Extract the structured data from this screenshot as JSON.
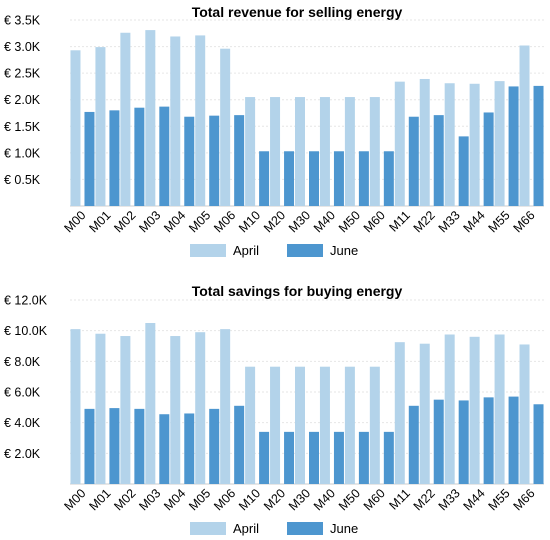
{
  "chart_data": [
    {
      "type": "bar",
      "title": "Total revenue for selling energy",
      "categories": [
        "M00",
        "M01",
        "M02",
        "M03",
        "M04",
        "M05",
        "M06",
        "M10",
        "M20",
        "M30",
        "M40",
        "M50",
        "M60",
        "M11",
        "M22",
        "M33",
        "M44",
        "M55",
        "M66"
      ],
      "series": [
        {
          "name": "April",
          "color": "#b3d3ea",
          "values": [
            2.93,
            2.99,
            3.26,
            3.31,
            3.19,
            3.21,
            2.96,
            2.05,
            2.05,
            2.05,
            2.05,
            2.05,
            2.05,
            2.34,
            2.39,
            2.31,
            2.3,
            2.35,
            3.02
          ]
        },
        {
          "name": "June",
          "color": "#4d96cf",
          "values": [
            1.77,
            1.8,
            1.85,
            1.87,
            1.68,
            1.7,
            1.71,
            1.03,
            1.03,
            1.03,
            1.03,
            1.03,
            1.03,
            1.68,
            1.71,
            1.31,
            1.76,
            2.25,
            2.26
          ]
        }
      ],
      "ylim": [
        0,
        3.5
      ],
      "yticks": [
        0.5,
        1.0,
        1.5,
        2.0,
        2.5,
        3.0,
        3.5
      ],
      "ytick_labels": [
        "€ 0.5K",
        "€ 1.0K",
        "€ 1.5K",
        "€ 2.0K",
        "€ 2.5K",
        "€ 3.0K",
        "€ 3.5K"
      ],
      "xlabel": "",
      "ylabel": "",
      "grid": true,
      "legend_position": "bottom-center"
    },
    {
      "type": "bar",
      "title": "Total savings for buying energy",
      "categories": [
        "M00",
        "M01",
        "M02",
        "M03",
        "M04",
        "M05",
        "M06",
        "M10",
        "M20",
        "M30",
        "M40",
        "M50",
        "M60",
        "M11",
        "M22",
        "M33",
        "M44",
        "M55",
        "M66"
      ],
      "series": [
        {
          "name": "April",
          "color": "#b3d3ea",
          "values": [
            10.1,
            9.8,
            9.65,
            10.5,
            9.65,
            9.9,
            10.1,
            7.65,
            7.65,
            7.65,
            7.65,
            7.65,
            7.65,
            9.25,
            9.15,
            9.75,
            9.6,
            9.75,
            9.1
          ]
        },
        {
          "name": "June",
          "color": "#4d96cf",
          "values": [
            4.9,
            4.95,
            4.9,
            4.55,
            4.6,
            4.9,
            5.1,
            3.4,
            3.4,
            3.4,
            3.4,
            3.4,
            3.4,
            5.1,
            5.5,
            5.45,
            5.65,
            5.7,
            5.2
          ]
        }
      ],
      "ylim": [
        0,
        12
      ],
      "yticks": [
        2,
        4,
        6,
        8,
        10,
        12
      ],
      "ytick_labels": [
        "€ 2.0K",
        "€ 4.0K",
        "€ 6.0K",
        "€ 8.0K",
        "€ 10.0K",
        "€ 12.0K"
      ],
      "xlabel": "",
      "ylabel": "",
      "grid": true,
      "legend_position": "bottom-center"
    }
  ]
}
